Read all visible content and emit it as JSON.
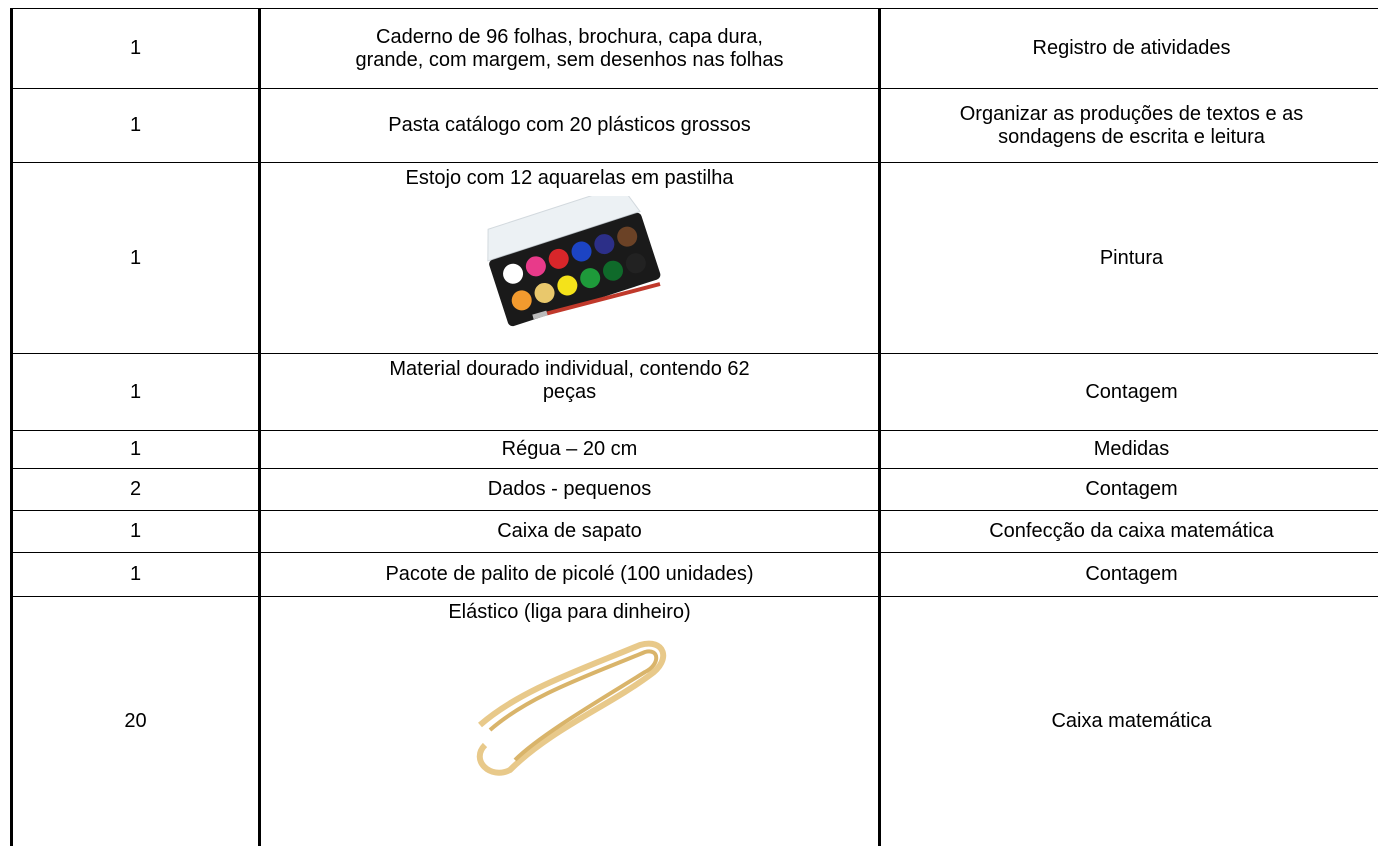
{
  "table": {
    "rows": [
      {
        "quantity": [
          "1"
        ],
        "item": [
          "Caderno de 96 folhas, brochura, capa dura,",
          "grande, com margem, sem desenhos nas folhas"
        ],
        "purpose": [
          "Registro de atividades"
        ]
      },
      {
        "quantity": [
          "1"
        ],
        "item": [
          "Pasta catálogo com 20 plásticos grossos"
        ],
        "purpose": [
          "Organizar as produções de textos e as",
          "sondagens de escrita e leitura"
        ]
      },
      {
        "quantity": [
          "1"
        ],
        "item": [
          "Estojo com 12 aquarelas em pastilha"
        ],
        "purpose": [
          "Pintura"
        ]
      },
      {
        "quantity": [
          "1"
        ],
        "item": [
          "Material dourado individual, contendo 62",
          "peças"
        ],
        "purpose": [
          "Contagem"
        ]
      },
      {
        "quantity": [
          "1"
        ],
        "item": [
          "Régua – 20 cm"
        ],
        "purpose": [
          "Medidas"
        ]
      },
      {
        "quantity": [
          "2"
        ],
        "item": [
          "Dados - pequenos"
        ],
        "purpose": [
          "Contagem"
        ]
      },
      {
        "quantity": [
          "1"
        ],
        "item": [
          "Caixa de sapato"
        ],
        "purpose": [
          "Confecção da caixa matemática"
        ]
      },
      {
        "quantity": [
          "1"
        ],
        "item": [
          "Pacote de palito de picolé (100 unidades)"
        ],
        "purpose": [
          "Contagem"
        ]
      },
      {
        "quantity": [
          "20"
        ],
        "item": [
          "Elástico (liga para dinheiro)"
        ],
        "purpose": [
          "Caixa matemática"
        ]
      }
    ]
  }
}
